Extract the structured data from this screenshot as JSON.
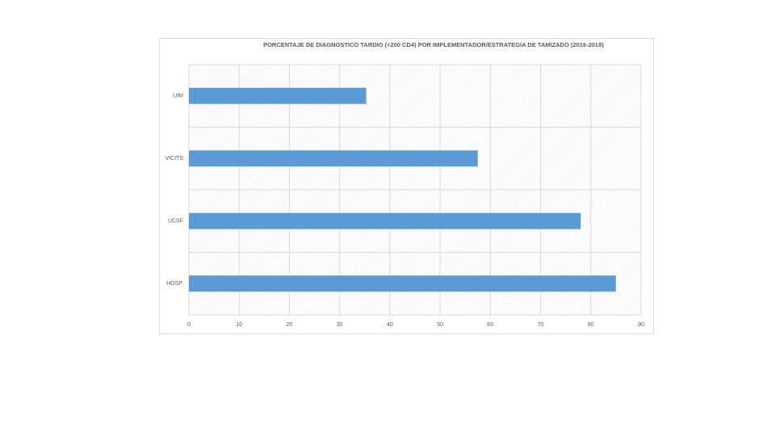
{
  "chart_data": {
    "type": "bar",
    "orientation": "horizontal",
    "title": "PORCENTAJE DE DIAGNOSTICO TARDIO (<200 CD4) POR IMPLEMENTADOR/ESTRATEGIA DE TAMIZADO (2016-2018)",
    "categories": [
      "UIM",
      "VICITS",
      "UCSF",
      "HOSP."
    ],
    "values": [
      35.3,
      57.5,
      78,
      85
    ],
    "color": "#5b9bd5",
    "xlim": [
      0,
      90
    ],
    "xticks": [
      0,
      10,
      20,
      30,
      40,
      50,
      60,
      70,
      80,
      90
    ],
    "grid": true
  }
}
